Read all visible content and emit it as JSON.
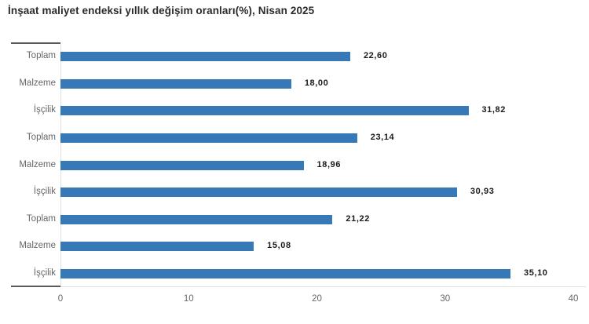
{
  "header": {
    "title": "İnşaat maliyet endeksi yıllık değişim oranları(%), Nisan 2025"
  },
  "chart_data": {
    "type": "bar",
    "orientation": "horizontal",
    "title": "İnşaat maliyet endeksi yıllık değişim oranları(%), Nisan 2025",
    "categories": [
      "Toplam",
      "Malzeme",
      "İşçilik",
      "Toplam",
      "Malzeme",
      "İşçilik",
      "Toplam",
      "Malzeme",
      "İşçilik"
    ],
    "values": [
      22.6,
      18.0,
      31.82,
      23.14,
      18.96,
      30.93,
      21.22,
      15.08,
      35.1
    ],
    "value_labels": [
      "22,60",
      "18,00",
      "31,82",
      "23,14",
      "18,96",
      "30,93",
      "21,22",
      "15,08",
      "35,10"
    ],
    "xlabel": "",
    "ylabel": "",
    "xlim": [
      0,
      40
    ],
    "x_ticks": [
      0,
      10,
      20,
      30,
      40
    ],
    "x_tick_labels": [
      "0",
      "10",
      "20",
      "30",
      "40"
    ],
    "grid": false,
    "legend": false,
    "colors": {
      "bar": "#3679b6",
      "category_label": "#666666",
      "value_label": "#1a1a1a",
      "axis_line_light": "#e0e0e0",
      "axis_cap_dark": "#5a5a5a",
      "title": "#2b2b2b"
    }
  }
}
